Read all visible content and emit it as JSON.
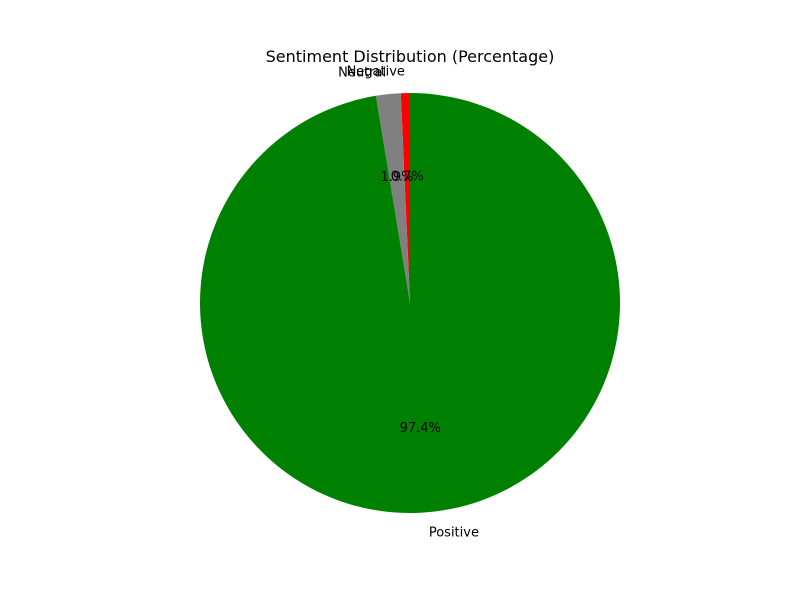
{
  "chart_data": {
    "type": "pie",
    "title": "Sentiment Distribution (Percentage)",
    "slices": [
      {
        "label": "Negative",
        "value": 0.7,
        "pct_label": "0.7%",
        "color": "#ff0000"
      },
      {
        "label": "Neutral",
        "value": 1.9,
        "pct_label": "1.9%",
        "color": "#808080"
      },
      {
        "label": "Positive",
        "value": 97.4,
        "pct_label": "97.4%",
        "color": "#008000"
      }
    ],
    "start_angle_deg": 90,
    "direction": "counterclockwise",
    "legend": "none",
    "grid": false
  }
}
